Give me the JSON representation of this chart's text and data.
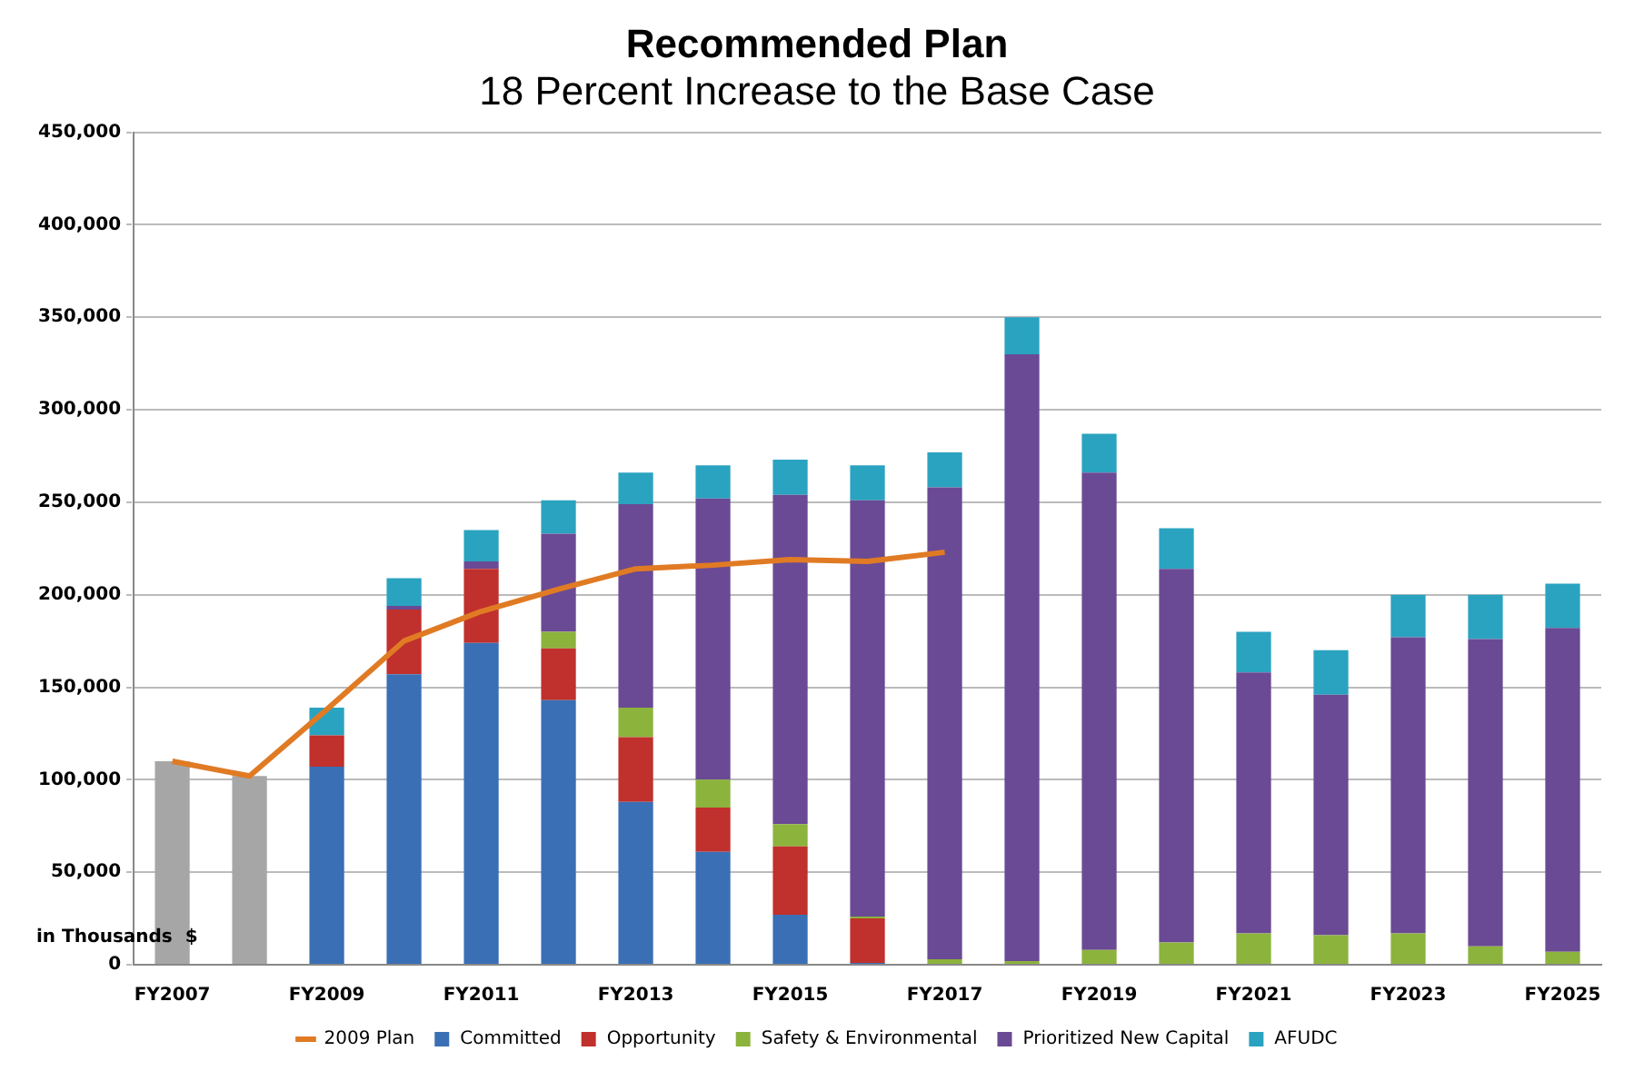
{
  "chart_data": {
    "type": "bar",
    "title": "Recommended Plan",
    "subtitle": "18 Percent Increase to the Base Case",
    "ylabel": "in Thousands  $",
    "categories": [
      "FY2007",
      null,
      "FY2009",
      null,
      "FY2011",
      null,
      "FY2013",
      null,
      "FY2015",
      null,
      "FY2017",
      null,
      "FY2019",
      null,
      "FY2021",
      null,
      "FY2023",
      null,
      "FY2025"
    ],
    "stacked": true,
    "series": [
      {
        "color": "#a6a6a6",
        "values": [
          110000,
          102000,
          null,
          null,
          null,
          null,
          null,
          null,
          null,
          null,
          null,
          null,
          null,
          null,
          null,
          null,
          null,
          null,
          null
        ]
      },
      {
        "name": "Committed",
        "color": "#3a6fb5",
        "values": [
          null,
          null,
          107000,
          157000,
          174000,
          143000,
          88000,
          61000,
          27000,
          1000,
          null,
          null,
          null,
          null,
          null,
          null,
          null,
          null,
          null
        ]
      },
      {
        "name": "Opportunity",
        "color": "#c0302c",
        "values": [
          null,
          null,
          17000,
          35000,
          40000,
          28000,
          35000,
          24000,
          37000,
          24000,
          null,
          null,
          null,
          null,
          null,
          null,
          null,
          null,
          null
        ]
      },
      {
        "name": "Safety & Environmental",
        "color": "#8cb33c",
        "values": [
          null,
          null,
          null,
          null,
          null,
          9000,
          16000,
          15000,
          12000,
          1000,
          3000,
          2000,
          8000,
          12000,
          17000,
          16000,
          17000,
          10000,
          7000
        ]
      },
      {
        "name": "Prioritized New Capital",
        "color": "#6a4a94",
        "values": [
          null,
          null,
          null,
          2000,
          4000,
          53000,
          110000,
          152000,
          178000,
          225000,
          255000,
          328000,
          258000,
          202000,
          141000,
          130000,
          160000,
          166000,
          175000
        ]
      },
      {
        "name": "AFUDC",
        "color": "#2aa3c0",
        "values": [
          null,
          null,
          15000,
          15000,
          17000,
          18000,
          17000,
          18000,
          19000,
          19000,
          19000,
          20000,
          21000,
          22000,
          22000,
          24000,
          23000,
          24000,
          24000
        ]
      },
      {
        "name": "2009 Plan",
        "type": "line",
        "color": "#e07b24",
        "values": [
          110000,
          102000,
          138000,
          175000,
          191000,
          203000,
          214000,
          216000,
          219000,
          218000,
          223000,
          null,
          null,
          null,
          null,
          null,
          null,
          null,
          null
        ]
      }
    ],
    "ylim": [
      0,
      450000
    ],
    "yticks": [
      0,
      {
        "value": 50000,
        "label": "50,000"
      },
      {
        "value": 100000,
        "label": "100,000"
      },
      {
        "value": 150000,
        "label": "150,000"
      },
      {
        "value": 200000,
        "label": "200,000"
      },
      {
        "value": 250000,
        "label": "250,000"
      },
      {
        "value": 300000,
        "label": "300,000"
      },
      {
        "value": 350000,
        "label": "350,000"
      },
      {
        "value": 400000,
        "label": "400,000"
      },
      {
        "value": 450000,
        "label": "450,000"
      }
    ],
    "grid": "y",
    "legend": "bottom",
    "marker": "none",
    "line_style": "solid"
  }
}
